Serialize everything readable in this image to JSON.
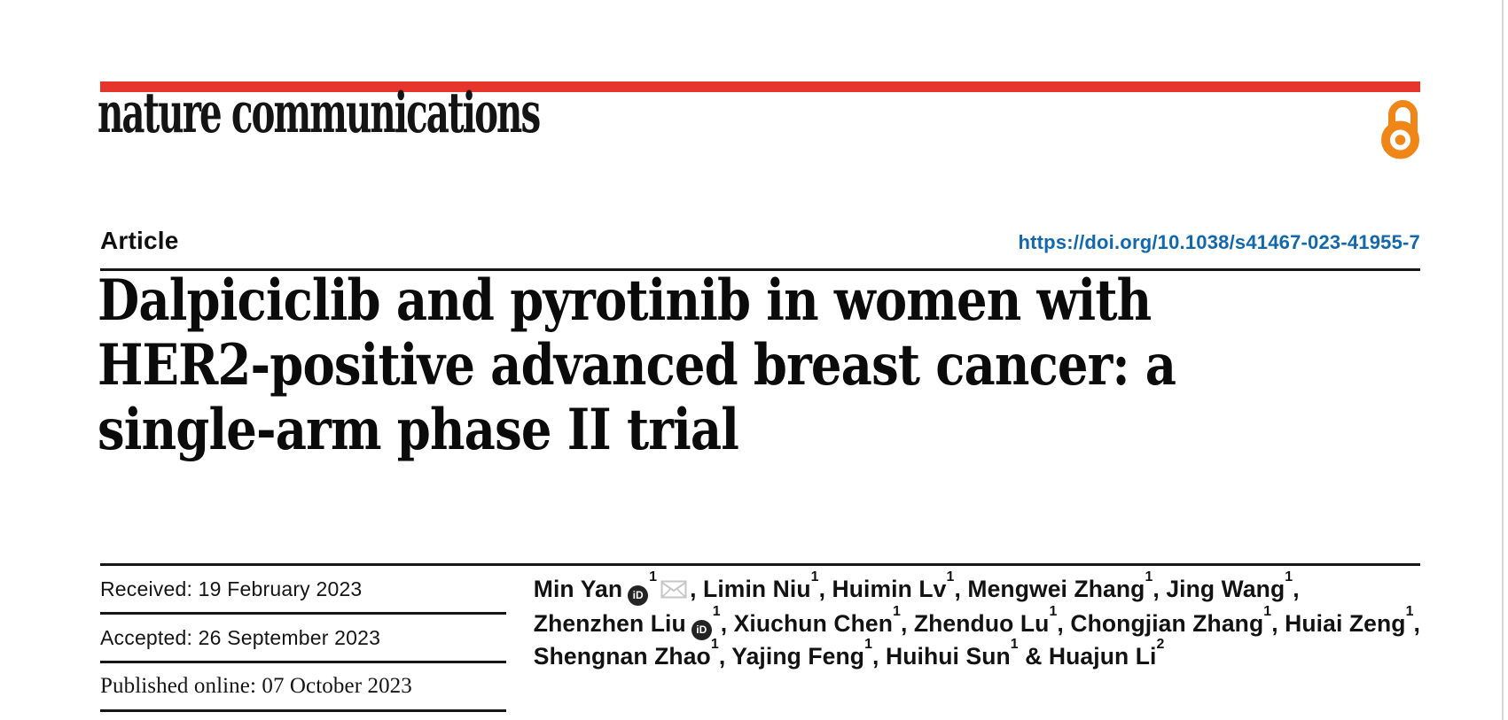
{
  "header": {
    "journal": "nature communications",
    "article_type": "Article",
    "doi": "https://doi.org/10.1038/s41467-023-41955-7",
    "brand_color": "#e6352b",
    "open_access_color": "#f08617",
    "link_color": "#1268ad"
  },
  "title": {
    "full": "Dalpiciclib and pyrotinib in women with HER2-positive advanced breast cancer: a single-arm phase II trial",
    "line1": "Dalpiciclib and pyrotinib in women with",
    "line2": "HER2-positive advanced breast cancer: a",
    "line3": "single-arm phase II trial"
  },
  "dates": {
    "received": "Received: 19 February 2023",
    "accepted": "Accepted: 26 September 2023",
    "published": "Published online: 07 October 2023"
  },
  "icons": {
    "orcid_label": "iD",
    "orcid_name": "orcid-icon",
    "envelope_name": "email-icon"
  },
  "authors": {
    "lines": [
      [
        {
          "t": "Min Yan"
        },
        {
          "icon": "orcid"
        },
        {
          "sup": "1"
        },
        {
          "icon": "envelope"
        },
        {
          "t": ", Limin Niu"
        },
        {
          "sup": "1"
        },
        {
          "t": ", Huimin Lv"
        },
        {
          "sup": "1"
        },
        {
          "t": ", Mengwei Zhang"
        },
        {
          "sup": "1"
        },
        {
          "t": ", Jing Wang"
        },
        {
          "sup": "1"
        },
        {
          "t": ","
        }
      ],
      [
        {
          "t": "Zhenzhen Liu"
        },
        {
          "icon": "orcid"
        },
        {
          "sup": "1"
        },
        {
          "t": ", Xiuchun Chen"
        },
        {
          "sup": "1"
        },
        {
          "t": ", Zhenduo Lu"
        },
        {
          "sup": "1"
        },
        {
          "t": ", Chongjian Zhang"
        },
        {
          "sup": "1"
        },
        {
          "t": ", Huiai Zeng"
        },
        {
          "sup": "1"
        },
        {
          "t": ","
        }
      ],
      [
        {
          "t": "Shengnan Zhao"
        },
        {
          "sup": "1"
        },
        {
          "t": ", Yajing Feng"
        },
        {
          "sup": "1"
        },
        {
          "t": ", Huihui Sun"
        },
        {
          "sup": "1"
        },
        {
          "t": " & Huajun Li"
        },
        {
          "sup": "2"
        }
      ]
    ]
  }
}
